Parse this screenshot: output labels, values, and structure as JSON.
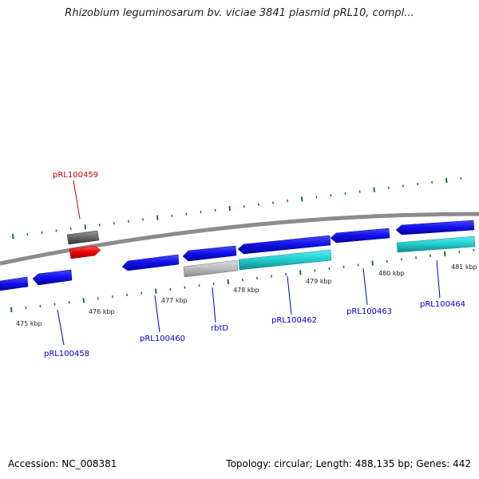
{
  "title": "Rhizobium leguminosarum bv. viciae 3841 plasmid pRL10, compl...",
  "footer": {
    "accession": "Accession: NC_008381",
    "topology": "Topology: circular; Length: 488,135 bp; Genes: 442"
  },
  "scale_labels": [
    "475 kbp",
    "476 kbp",
    "477 kbp",
    "478 kbp",
    "479 kbp",
    "480 kbp",
    "481 kbp"
  ],
  "genes": [
    {
      "name": "pRL100458",
      "color": "#0000cc"
    },
    {
      "name": "pRL100459",
      "color": "#cc0000"
    },
    {
      "name": "pRL100460",
      "color": "#0000cc"
    },
    {
      "name": "rbtD",
      "color": "#0000cc"
    },
    {
      "name": "pRL100462",
      "color": "#0000cc"
    },
    {
      "name": "pRL100463",
      "color": "#0000cc"
    },
    {
      "name": "pRL100464",
      "color": "#0000cc"
    }
  ],
  "colors": {
    "backbone": "#8c8c8c",
    "ticks": "#1a7a1a",
    "cds_blue": "#1a1aee",
    "cds_red": "#ee1111",
    "cds_cyan": "#22cccc",
    "cds_gray": "#bbbbbb",
    "cds_darkgray": "#666666"
  }
}
